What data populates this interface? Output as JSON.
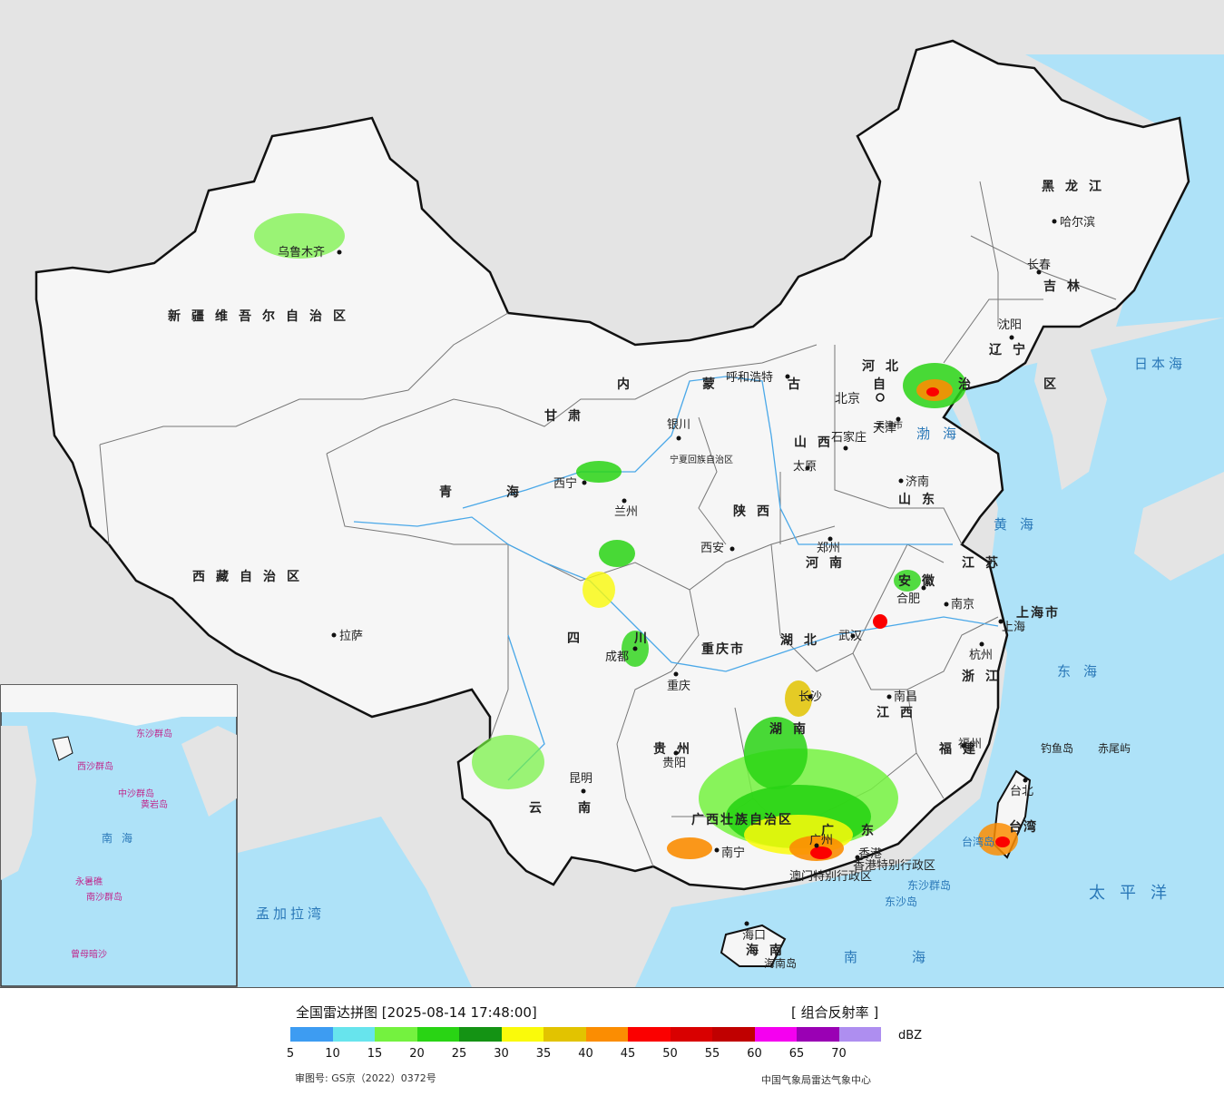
{
  "map": {
    "provinces": [
      {
        "name": "新疆维吾尔自治区"
      },
      {
        "name": "西藏自治区"
      },
      {
        "name": "青海"
      },
      {
        "name": "甘肃"
      },
      {
        "name": "内蒙古自治区"
      },
      {
        "name": "黑龙江"
      },
      {
        "name": "吉林"
      },
      {
        "name": "辽宁"
      },
      {
        "name": "河北"
      },
      {
        "name": "山西"
      },
      {
        "name": "山东"
      },
      {
        "name": "陕西"
      },
      {
        "name": "河南"
      },
      {
        "name": "江苏"
      },
      {
        "name": "安徽"
      },
      {
        "name": "上海市"
      },
      {
        "name": "浙江"
      },
      {
        "name": "湖北"
      },
      {
        "name": "四川"
      },
      {
        "name": "重庆市"
      },
      {
        "name": "湖南"
      },
      {
        "name": "江西"
      },
      {
        "name": "福建"
      },
      {
        "name": "贵州"
      },
      {
        "name": "云南"
      },
      {
        "name": "广西壮族自治区"
      },
      {
        "name": "广东"
      },
      {
        "name": "海南"
      },
      {
        "name": "台湾"
      },
      {
        "name": "宁夏回族自治区"
      },
      {
        "name": "天津市"
      },
      {
        "name": "香港特别行政区"
      },
      {
        "name": "澳门特别行政区"
      }
    ],
    "cities": [
      "乌鲁木齐",
      "拉萨",
      "西宁",
      "兰州",
      "银川",
      "呼和浩特",
      "北京",
      "天津",
      "石家庄",
      "太原",
      "济南",
      "郑州",
      "西安",
      "合肥",
      "南京",
      "上海",
      "杭州",
      "武汉",
      "成都",
      "重庆",
      "长沙",
      "南昌",
      "福州",
      "贵阳",
      "昆明",
      "南宁",
      "广州",
      "香港",
      "海口",
      "沈阳",
      "长春",
      "哈尔滨",
      "台北"
    ],
    "seas": [
      "渤海",
      "黄海",
      "东海",
      "南海",
      "日本海",
      "太平洋",
      "孟加拉湾"
    ],
    "islands": [
      "钓鱼岛",
      "赤尾屿",
      "东沙群岛",
      "东沙岛",
      "海南岛",
      "台湾岛"
    ],
    "inset_labels": [
      "南海",
      "西沙群岛",
      "中沙群岛",
      "南沙群岛",
      "黄岩岛",
      "永暑礁",
      "曾母暗沙",
      "东沙群岛"
    ]
  },
  "legend": {
    "title": "全国雷达拼图 [2025-08-14 17:48:00]",
    "product": "[ 组合反射率 ]",
    "unit": "dBZ",
    "ticks": [
      "5",
      "10",
      "15",
      "20",
      "25",
      "30",
      "35",
      "40",
      "45",
      "50",
      "55",
      "60",
      "65",
      "70"
    ],
    "colors": [
      "#3d9cf2",
      "#67e4ed",
      "#74f23f",
      "#29d414",
      "#149314",
      "#fafa0a",
      "#e2c300",
      "#fb8d02",
      "#fb0000",
      "#d90000",
      "#c00000",
      "#f500f0",
      "#9a00b4",
      "#ae8ef0"
    ],
    "approval": "审图号: GS京（2022）0372号",
    "producer": "中国气象局雷达气象中心"
  }
}
